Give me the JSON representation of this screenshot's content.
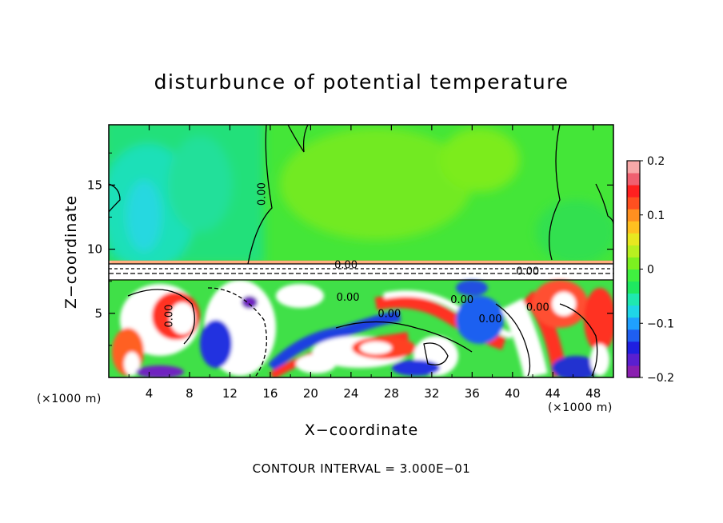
{
  "chart_data": {
    "type": "heatmap",
    "title": "disturbunce of potential temperature",
    "xlabel": "X−coordinate",
    "ylabel": "Z−coordinate",
    "x_unit_left": "(×1000 m)",
    "x_unit_right": "(×1000 m)",
    "x_ticks": [
      "4",
      "8",
      "12",
      "16",
      "20",
      "24",
      "28",
      "32",
      "36",
      "40",
      "44",
      "48"
    ],
    "y_ticks": [
      "5",
      "10",
      "15"
    ],
    "xlim": [
      0,
      50
    ],
    "ylim": [
      0,
      19.7
    ],
    "colorbar": {
      "range": [
        -0.2,
        0.2
      ],
      "tick_labels": [
        "0.2",
        "0.1",
        "0",
        "−0.1",
        "−0.2"
      ],
      "tick_values": [
        0.2,
        0.1,
        0,
        -0.1,
        -0.2
      ],
      "colors": [
        "#8a1fb0",
        "#5a1fd0",
        "#1f1fe0",
        "#1f5ff0",
        "#1fa0ff",
        "#1fd6e8",
        "#1fe8b0",
        "#1fe860",
        "#40f040",
        "#7cf020",
        "#b8f020",
        "#e8e820",
        "#ffc020",
        "#ff9020",
        "#ff5020",
        "#ff2020",
        "#f06070",
        "#f8a8a8"
      ]
    },
    "contour_labels": [
      {
        "text": "0.00",
        "x": 15.5,
        "y": 14.3,
        "rotate": -90
      },
      {
        "text": "0.00",
        "x": 23.5,
        "y": 8.5
      },
      {
        "text": "0.00",
        "x": 6.3,
        "y": 4.8,
        "rotate": -90
      },
      {
        "text": "0.00",
        "x": 23.7,
        "y": 6.0
      },
      {
        "text": "0.00",
        "x": 27.8,
        "y": 4.7
      },
      {
        "text": "0.00",
        "x": 35.0,
        "y": 5.8
      },
      {
        "text": "0.00",
        "x": 37.8,
        "y": 4.3
      },
      {
        "text": "0.00",
        "x": 42.5,
        "y": 5.2
      },
      {
        "text": "0.00",
        "x": 41.5,
        "y": 8.0
      }
    ],
    "contour_interval": "CONTOUR INTERVAL = 3.000E−01"
  }
}
